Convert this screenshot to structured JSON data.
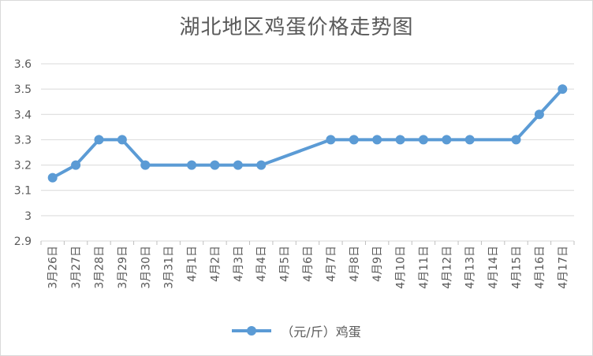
{
  "chart_data": {
    "type": "line",
    "title": "湖北地区鸡蛋价格走势图",
    "categories": [
      "3月26日",
      "3月27日",
      "3月28日",
      "3月29日",
      "3月30日",
      "3月31日",
      "4月1日",
      "4月2日",
      "4月3日",
      "4月4日",
      "4月5日",
      "4月6日",
      "4月7日",
      "4月8日",
      "4月9日",
      "4月10日",
      "4月11日",
      "4月12日",
      "4月13日",
      "4月14日",
      "4月15日",
      "4月16日",
      "4月17日"
    ],
    "series": [
      {
        "name": "（元/斤）鸡蛋",
        "values": [
          3.15,
          3.2,
          3.3,
          3.3,
          3.2,
          null,
          3.2,
          3.2,
          3.2,
          3.2,
          null,
          null,
          3.3,
          3.3,
          3.3,
          3.3,
          3.3,
          3.3,
          3.3,
          null,
          3.3,
          3.4,
          3.5
        ]
      }
    ],
    "yticks": [
      "2.9",
      "3",
      "3.1",
      "3.2",
      "3.3",
      "3.4",
      "3.5",
      "3.6"
    ],
    "ylim": [
      2.9,
      3.6
    ],
    "grid": true,
    "legend": "bottom",
    "color": "#5b9bd5"
  }
}
